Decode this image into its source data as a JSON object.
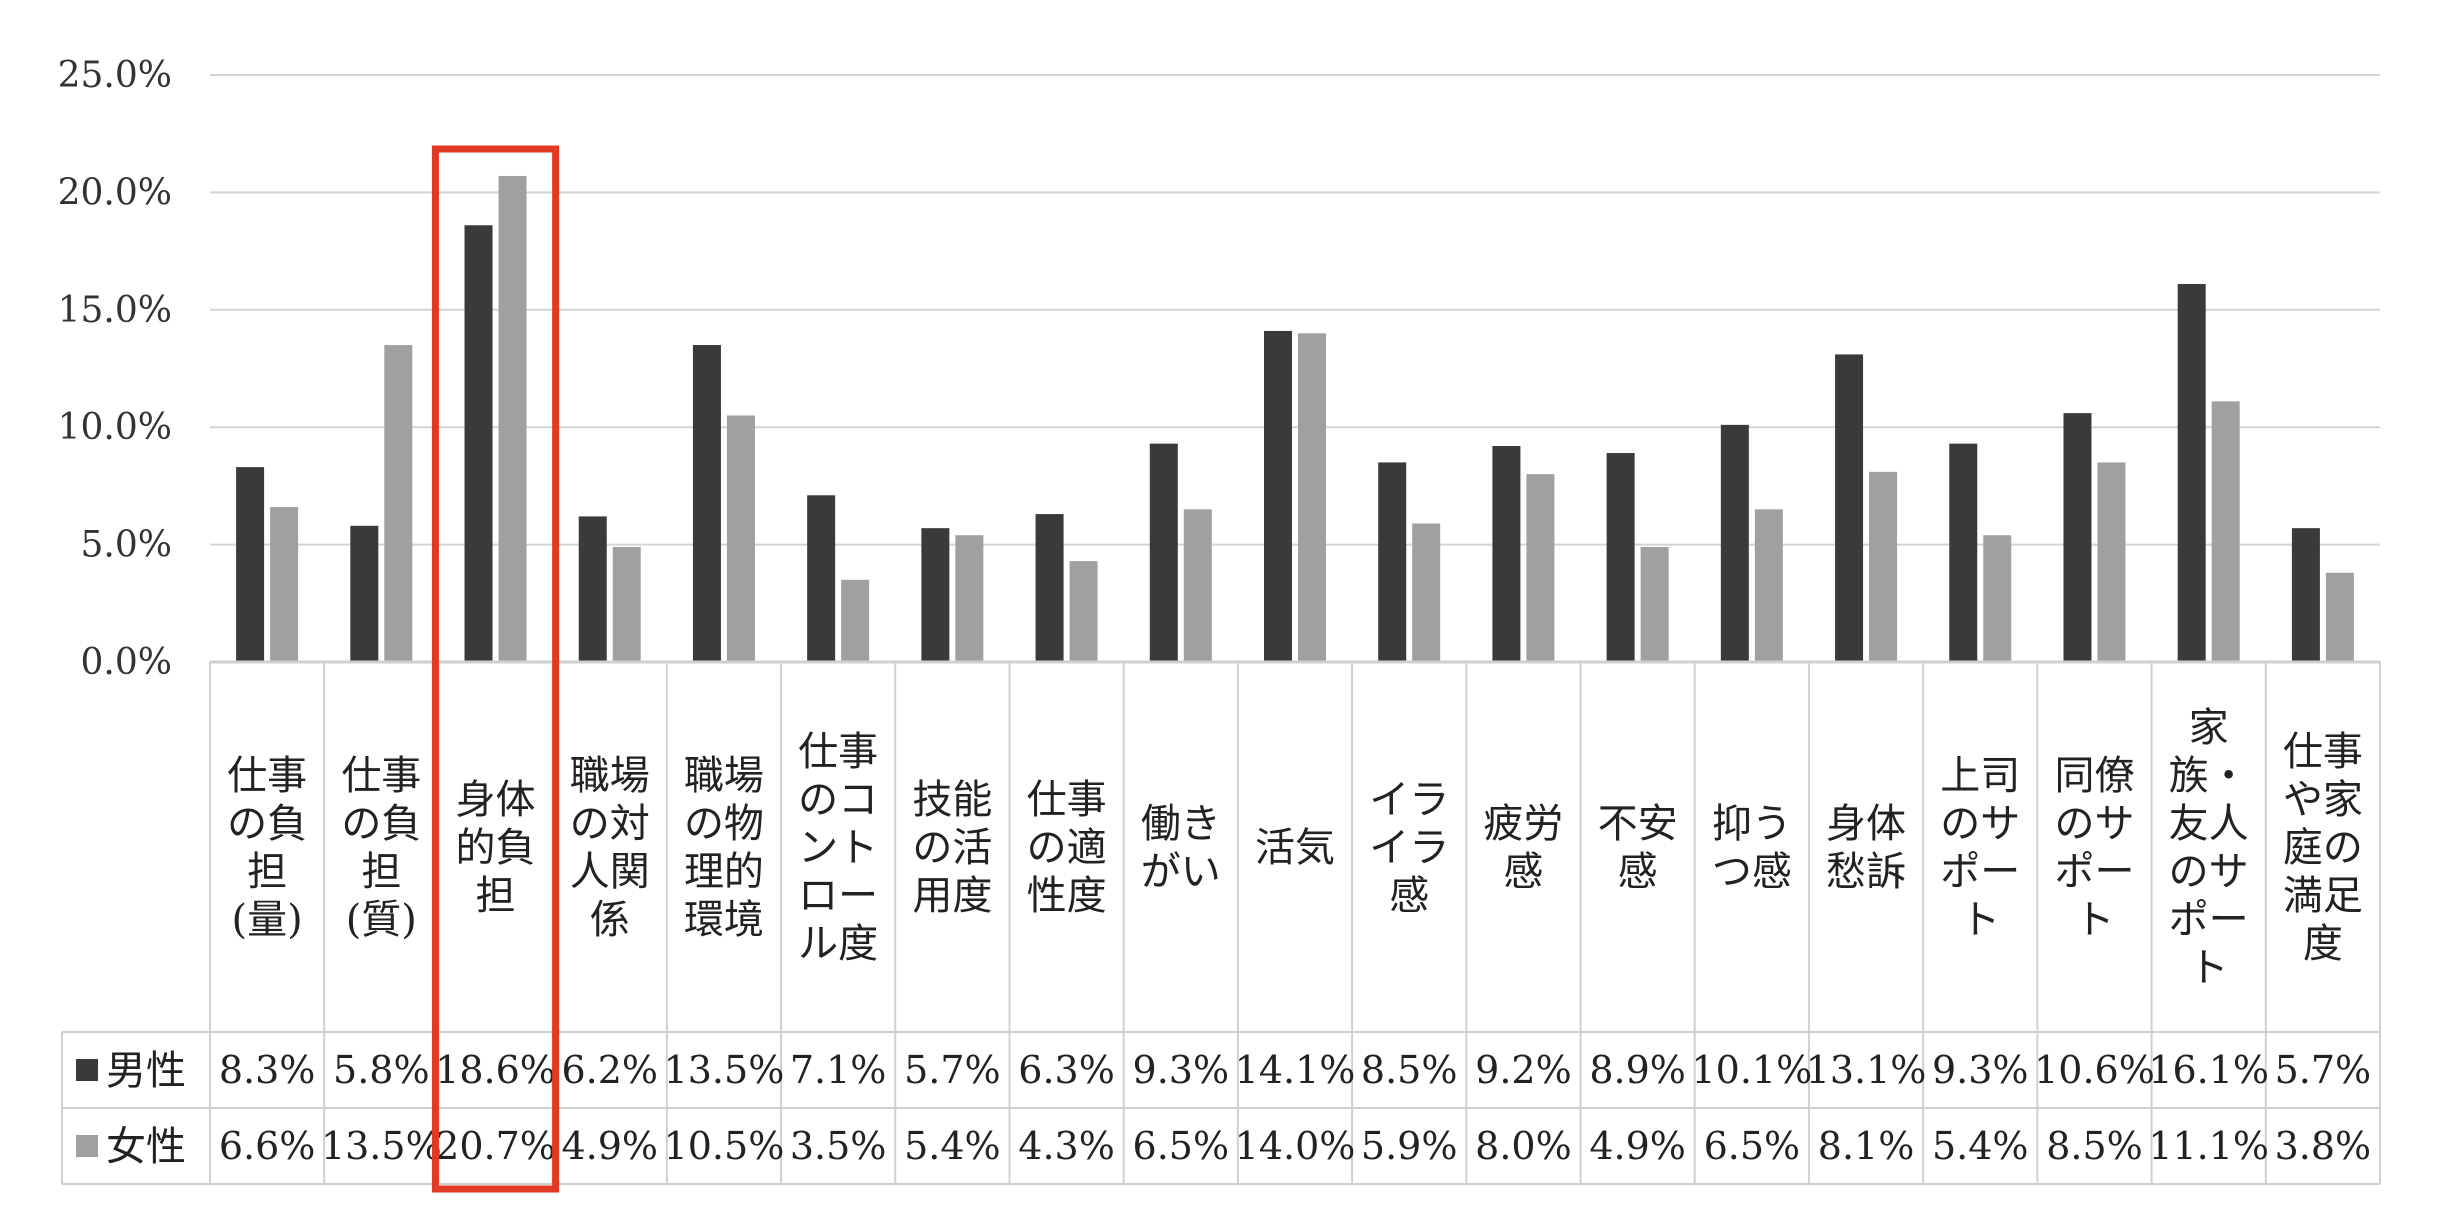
{
  "chart_data": {
    "type": "bar",
    "categories": [
      "仕事の負担（量）",
      "仕事の負担（質）",
      "身体的負担",
      "職場の対人関係",
      "職場の物理的環境",
      "仕事のコントロール度",
      "技能の活用度",
      "仕事の適性度",
      "働きがい",
      "活気",
      "イライラ感",
      "疲労感",
      "不安感",
      "抑うつ感",
      "身体愁訴",
      "上司のサポート",
      "同僚のサポート",
      "家族・友人のサポート",
      "仕事や家庭の満足度"
    ],
    "category_lines": [
      [
        "仕事",
        "の負",
        "担",
        "(量)"
      ],
      [
        "仕事",
        "の負",
        "担",
        "(質)"
      ],
      [
        "身体",
        "的負",
        "担"
      ],
      [
        "職場",
        "の対",
        "人関",
        "係"
      ],
      [
        "職場",
        "の物",
        "理的",
        "環境"
      ],
      [
        "仕事",
        "のコ",
        "ント",
        "ロー",
        "ル度"
      ],
      [
        "技能",
        "の活",
        "用度"
      ],
      [
        "仕事",
        "の適",
        "性度"
      ],
      [
        "働き",
        "がい"
      ],
      [
        "活気"
      ],
      [
        "イラ",
        "イラ",
        "感"
      ],
      [
        "疲労",
        "感"
      ],
      [
        "不安",
        "感"
      ],
      [
        "抑う",
        "つ感"
      ],
      [
        "身体",
        "愁訴"
      ],
      [
        "上司",
        "のサ",
        "ポー",
        "ト"
      ],
      [
        "同僚",
        "のサ",
        "ポー",
        "ト"
      ],
      [
        "家",
        "族・",
        "友人",
        "のサ",
        "ポー",
        "ト"
      ],
      [
        "仕事",
        "や家",
        "庭の",
        "満足",
        "度"
      ]
    ],
    "series": [
      {
        "name": "男性",
        "color": "#3a3a3a",
        "values": [
          8.3,
          5.8,
          18.6,
          6.2,
          13.5,
          7.1,
          5.7,
          6.3,
          9.3,
          14.1,
          8.5,
          9.2,
          8.9,
          10.1,
          13.1,
          9.3,
          10.6,
          16.1,
          5.7
        ],
        "labels": [
          "8.3%",
          "5.8%",
          "18.6%",
          "6.2%",
          "13.5%",
          "7.1%",
          "5.7%",
          "6.3%",
          "9.3%",
          "14.1%",
          "8.5%",
          "9.2%",
          "8.9%",
          "10.1%",
          "13.1%",
          "9.3%",
          "10.6%",
          "16.1%",
          "5.7%"
        ]
      },
      {
        "name": "女性",
        "color": "#a0a0a0",
        "values": [
          6.6,
          13.5,
          20.7,
          4.9,
          10.5,
          3.5,
          5.4,
          4.3,
          6.5,
          14.0,
          5.9,
          8.0,
          4.9,
          6.5,
          8.1,
          5.4,
          8.5,
          11.1,
          3.8
        ],
        "labels": [
          "6.6%",
          "13.5%",
          "20.7%",
          "4.9%",
          "10.5%",
          "3.5%",
          "5.4%",
          "4.3%",
          "6.5%",
          "14.0%",
          "5.9%",
          "8.0%",
          "4.9%",
          "6.5%",
          "8.1%",
          "5.4%",
          "8.5%",
          "11.1%",
          "3.8%"
        ]
      }
    ],
    "y_ticks": [
      "0.0%",
      "5.0%",
      "10.0%",
      "15.0%",
      "20.0%",
      "25.0%"
    ],
    "ylim": [
      0,
      25
    ],
    "grid": true,
    "legend": "data-table-left",
    "data_table": true,
    "highlight": {
      "category_index": 2,
      "color": "#e03a22"
    }
  }
}
